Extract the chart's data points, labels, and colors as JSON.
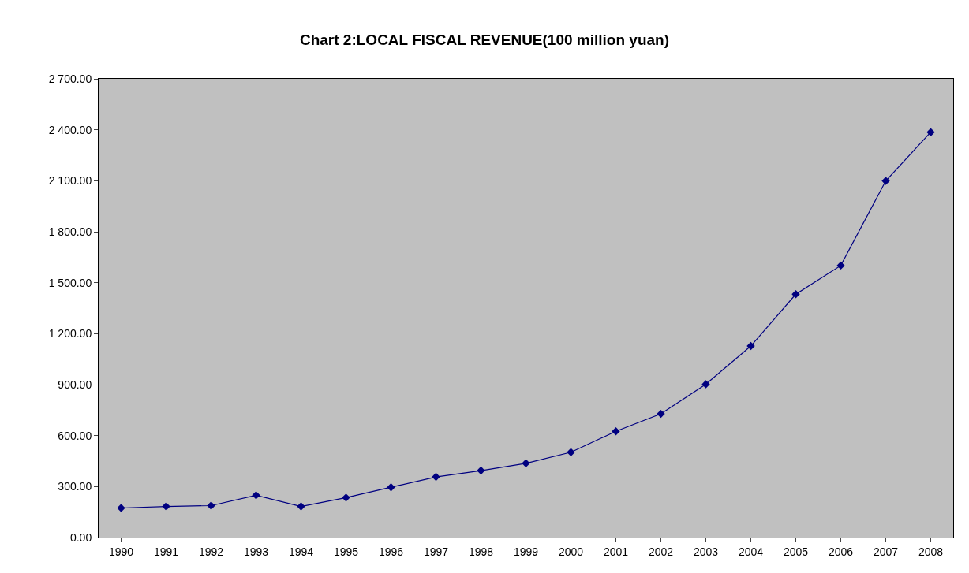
{
  "chart_data": {
    "type": "line",
    "title": "Chart 2:LOCAL FISCAL REVENUE(100 million yuan)",
    "categories": [
      "1990",
      "1991",
      "1992",
      "1993",
      "1994",
      "1995",
      "1996",
      "1997",
      "1998",
      "1999",
      "2000",
      "2001",
      "2002",
      "2003",
      "2004",
      "2005",
      "2006",
      "2007",
      "2008"
    ],
    "series": [
      {
        "color": "#000080",
        "values": [
          174,
          183,
          188,
          249,
          183,
          235,
          296,
          357,
          394,
          437,
          502,
          625,
          728,
          902,
          1127,
          1432,
          1601,
          2099,
          2386
        ]
      }
    ],
    "ylim": [
      0,
      2700
    ],
    "yticks": [
      {
        "value": 0,
        "label": "0.00"
      },
      {
        "value": 300,
        "label": "300.00"
      },
      {
        "value": 600,
        "label": "600.00"
      },
      {
        "value": 900,
        "label": "900.00"
      },
      {
        "value": 1200,
        "label": "1 200.00"
      },
      {
        "value": 1500,
        "label": "1 500.00"
      },
      {
        "value": 1800,
        "label": "1 800.00"
      },
      {
        "value": 2100,
        "label": "2 100.00"
      },
      {
        "value": 2400,
        "label": "2 400.00"
      },
      {
        "value": 2700,
        "label": "2 700.00"
      }
    ],
    "marker": "diamond",
    "line_style": "solid",
    "grid": false,
    "legend": false
  }
}
